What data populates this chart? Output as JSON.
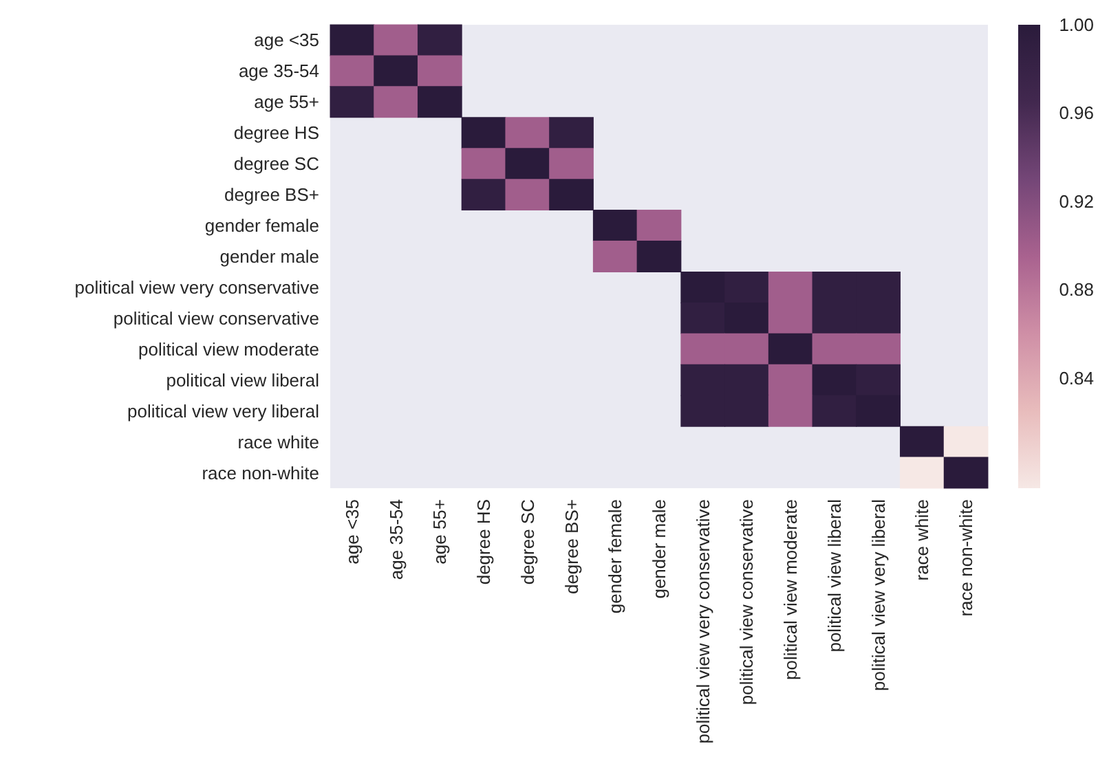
{
  "chart_data": {
    "type": "heatmap",
    "categories": [
      "age <35",
      "age 35-54",
      "age 55+",
      "degree HS",
      "degree SC",
      "degree BS+",
      "gender female",
      "gender male",
      "political view very conservative",
      "political view conservative",
      "political view moderate",
      "political view liberal",
      "political view very liberal",
      "race white",
      "race non-white"
    ],
    "y_categories": [
      "age <35",
      "age 35-54",
      "age 55+",
      "degree HS",
      "degree SC",
      "degree BS+",
      "gender female",
      "gender male",
      "political view very conservative",
      "political view conservative",
      "political view moderate",
      "political view liberal",
      "political view very liberal",
      "race white",
      "race non-white"
    ],
    "cells": [
      [
        1,
        0.9,
        0.99,
        null,
        null,
        null,
        null,
        null,
        null,
        null,
        null,
        null,
        null,
        null,
        null
      ],
      [
        0.9,
        1,
        0.9,
        null,
        null,
        null,
        null,
        null,
        null,
        null,
        null,
        null,
        null,
        null,
        null
      ],
      [
        0.99,
        0.9,
        1,
        null,
        null,
        null,
        null,
        null,
        null,
        null,
        null,
        null,
        null,
        null,
        null
      ],
      [
        null,
        null,
        null,
        1,
        0.9,
        0.99,
        null,
        null,
        null,
        null,
        null,
        null,
        null,
        null,
        null
      ],
      [
        null,
        null,
        null,
        0.9,
        1,
        0.9,
        null,
        null,
        null,
        null,
        null,
        null,
        null,
        null,
        null
      ],
      [
        null,
        null,
        null,
        0.99,
        0.9,
        1,
        null,
        null,
        null,
        null,
        null,
        null,
        null,
        null,
        null
      ],
      [
        null,
        null,
        null,
        null,
        null,
        null,
        1,
        0.9,
        null,
        null,
        null,
        null,
        null,
        null,
        null
      ],
      [
        null,
        null,
        null,
        null,
        null,
        null,
        0.9,
        1,
        null,
        null,
        null,
        null,
        null,
        null,
        null
      ],
      [
        null,
        null,
        null,
        null,
        null,
        null,
        null,
        null,
        1,
        0.99,
        0.9,
        0.99,
        0.99,
        null,
        null
      ],
      [
        null,
        null,
        null,
        null,
        null,
        null,
        null,
        null,
        0.99,
        1,
        0.9,
        0.99,
        0.99,
        null,
        null
      ],
      [
        null,
        null,
        null,
        null,
        null,
        null,
        null,
        null,
        0.9,
        0.9,
        1,
        0.9,
        0.9,
        null,
        null
      ],
      [
        null,
        null,
        null,
        null,
        null,
        null,
        null,
        null,
        0.99,
        0.99,
        0.9,
        1,
        0.99,
        null,
        null
      ],
      [
        null,
        null,
        null,
        null,
        null,
        null,
        null,
        null,
        0.99,
        0.99,
        0.9,
        0.99,
        1,
        null,
        null
      ],
      [
        null,
        null,
        null,
        null,
        null,
        null,
        null,
        null,
        null,
        null,
        null,
        null,
        null,
        1,
        0.79
      ],
      [
        null,
        null,
        null,
        null,
        null,
        null,
        null,
        null,
        null,
        null,
        null,
        null,
        null,
        0.79,
        1
      ]
    ],
    "clim": [
      0.79,
      1.0
    ],
    "cticks": [
      0.84,
      0.88,
      0.92,
      0.96,
      {
        "value": 1.0,
        "label": "1.00"
      }
    ]
  }
}
